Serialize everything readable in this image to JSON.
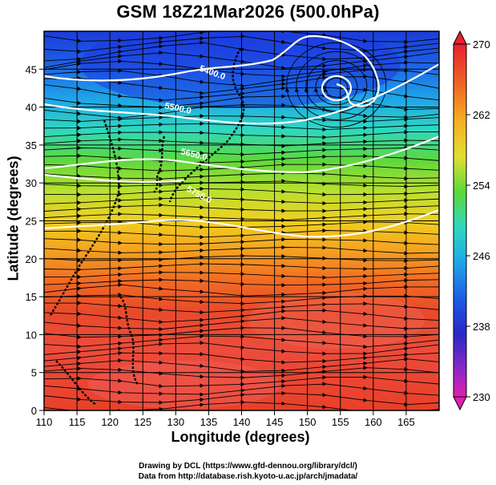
{
  "title": "GSM 18Z21Mar2026 (500.0hPa)",
  "xaxis": {
    "label": "Longitude (degrees)",
    "range": [
      110,
      170
    ],
    "ticks": [
      "110",
      "115",
      "120",
      "125",
      "130",
      "135",
      "140",
      "145",
      "150",
      "155",
      "160",
      "165"
    ]
  },
  "yaxis": {
    "label": "Latitude  (degrees)",
    "range": [
      0,
      50
    ],
    "ticks": [
      "0",
      "5",
      "10",
      "15",
      "20",
      "25",
      "30",
      "35",
      "40",
      "45"
    ]
  },
  "colorbar": {
    "range": [
      230,
      270
    ],
    "labels": [
      "270",
      "262",
      "254",
      "246",
      "238",
      "230"
    ]
  },
  "contours": [
    {
      "label": "5400.0",
      "value": 5400
    },
    {
      "label": "5500.0",
      "value": 5500
    },
    {
      "label": "5650.0",
      "value": 5650
    },
    {
      "label": "5750.0",
      "value": 5750
    }
  ],
  "credits": {
    "line1": "Drawing by DCL (https://www.gfd-dennou.org/library/dcl/)",
    "line2": "Data from http://database.rish.kyoto-u.ac.jp/arch/jmadata/"
  }
}
